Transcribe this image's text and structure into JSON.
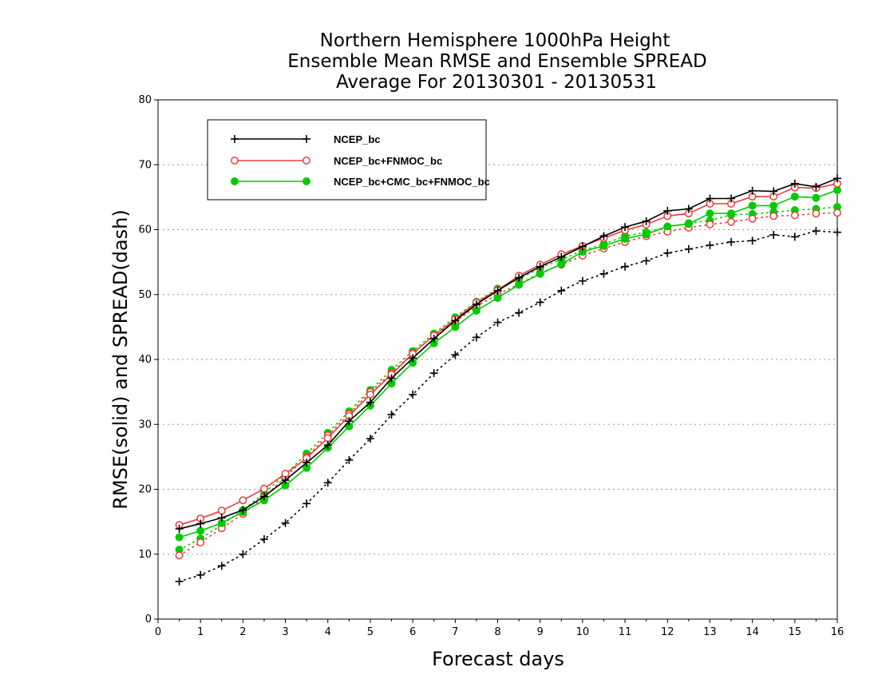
{
  "chart_data": {
    "type": "line",
    "title_lines": [
      "Northern Hemisphere 1000hPa Height",
      "Ensemble Mean RMSE and Ensemble SPREAD",
      "Average For 20130301 - 20130531"
    ],
    "xlabel": "Forecast days",
    "ylabel": "RMSE(solid) and SPREAD(dash)",
    "xlim": [
      0,
      16
    ],
    "ylim": [
      0,
      80
    ],
    "x_ticks": [
      0,
      1,
      2,
      3,
      4,
      5,
      6,
      7,
      8,
      9,
      10,
      11,
      12,
      13,
      14,
      15,
      16
    ],
    "y_ticks": [
      0,
      10,
      20,
      30,
      40,
      50,
      60,
      70,
      80
    ],
    "grid": "horizontal dotted",
    "legend_position": "top-left",
    "x": [
      0.5,
      1,
      1.5,
      2,
      2.5,
      3,
      3.5,
      4,
      4.5,
      5,
      5.5,
      6,
      6.5,
      7,
      7.5,
      8,
      8.5,
      9,
      9.5,
      10,
      10.5,
      11,
      11.5,
      12,
      12.5,
      13,
      13.5,
      14,
      14.5,
      15,
      15.5,
      16
    ],
    "series": [
      {
        "name": "NCEP_bc",
        "color": "#000000",
        "marker": "plus",
        "rmse": [
          13.9,
          14.7,
          15.6,
          16.8,
          18.9,
          21.4,
          24.1,
          26.8,
          30.5,
          33.4,
          37.1,
          40.2,
          43.2,
          46.0,
          48.5,
          50.6,
          52.6,
          54.3,
          55.8,
          57.4,
          59.0,
          60.4,
          61.3,
          62.9,
          63.2,
          64.8,
          64.8,
          66.0,
          65.9,
          67.1,
          66.6,
          67.9
        ],
        "spread": [
          5.8,
          6.8,
          8.2,
          10.0,
          12.3,
          14.8,
          17.8,
          21.0,
          24.5,
          27.8,
          31.5,
          34.6,
          37.9,
          40.7,
          43.4,
          45.7,
          47.2,
          48.8,
          50.6,
          52.1,
          53.2,
          54.3,
          55.2,
          56.4,
          57.0,
          57.6,
          58.1,
          58.3,
          59.2,
          58.9,
          59.8,
          59.6
        ]
      },
      {
        "name": "NCEP_bc+FNMOC_bc",
        "color": "#ee3b3b",
        "marker": "open-circle",
        "rmse": [
          14.5,
          15.5,
          16.7,
          18.3,
          20.1,
          22.4,
          24.8,
          27.9,
          31.3,
          34.6,
          37.7,
          40.9,
          43.7,
          46.2,
          48.8,
          50.7,
          52.9,
          54.6,
          56.2,
          57.5,
          58.7,
          59.9,
          60.8,
          62.1,
          62.5,
          64.0,
          64.0,
          65.1,
          65.1,
          66.5,
          66.4,
          67.1
        ],
        "spread": [
          9.8,
          11.8,
          14.0,
          16.2,
          18.8,
          21.9,
          25.0,
          28.3,
          31.6,
          35.0,
          37.9,
          41.0,
          43.7,
          45.8,
          48.2,
          50.0,
          51.6,
          53.3,
          54.6,
          56.0,
          57.1,
          58.1,
          59.0,
          59.7,
          60.3,
          60.8,
          61.2,
          61.7,
          62.1,
          62.2,
          62.5,
          62.6
        ]
      },
      {
        "name": "NCEP_bc+CMC_bc+FNMOC_bc",
        "color": "#00cc00",
        "marker": "filled-circle",
        "rmse": [
          12.6,
          13.6,
          14.8,
          16.5,
          18.3,
          20.6,
          23.3,
          26.4,
          29.7,
          32.9,
          36.3,
          39.5,
          42.5,
          45.0,
          47.5,
          49.5,
          51.5,
          53.2,
          54.7,
          56.6,
          57.5,
          58.6,
          59.3,
          60.5,
          60.9,
          62.5,
          62.5,
          63.7,
          63.7,
          65.1,
          64.9,
          66.1
        ],
        "spread": [
          10.7,
          12.4,
          14.5,
          16.8,
          19.4,
          22.3,
          25.5,
          28.7,
          32.0,
          35.3,
          38.4,
          41.3,
          44.0,
          46.5,
          48.9,
          50.9,
          52.4,
          54.1,
          55.4,
          56.8,
          57.8,
          59.0,
          59.6,
          60.4,
          61.0,
          61.4,
          62.3,
          62.4,
          62.7,
          63.0,
          63.2,
          63.5
        ]
      }
    ]
  }
}
